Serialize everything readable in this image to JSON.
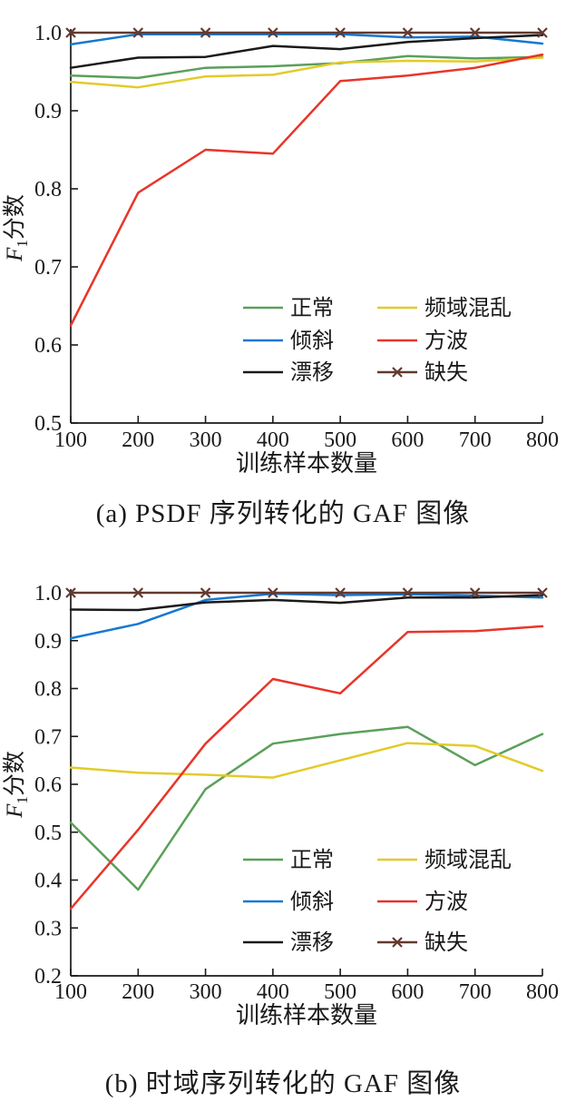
{
  "colors": {
    "axis": "#1a1a1a",
    "normal_green": "#5aa05a",
    "tilt_blue": "#1578d2",
    "drift_black": "#1a1a1a",
    "freq_yellow": "#e2cb2a",
    "square_red": "#e8352a",
    "missing_brown": "#63392f"
  },
  "chart_data": [
    {
      "type": "line",
      "caption": "(a) PSDF 序列转化的 GAF 图像",
      "xlabel": "训练样本数量",
      "ylabel": {
        "italic": "F",
        "sub": "1",
        "text": "分数"
      },
      "xlim": [
        100,
        800
      ],
      "ylim": [
        0.5,
        1.0
      ],
      "xticks": [
        100,
        200,
        300,
        400,
        500,
        600,
        700,
        800
      ],
      "yticks": [
        0.5,
        0.6,
        0.7,
        0.8,
        0.9,
        1.0
      ],
      "x": [
        100,
        200,
        300,
        400,
        500,
        600,
        700,
        800
      ],
      "legend_position": "inside-lower-right",
      "grid": false,
      "series": [
        {
          "name": "正常",
          "color": "#5aa05a",
          "marker": "none",
          "values": [
            0.945,
            0.942,
            0.955,
            0.957,
            0.961,
            0.97,
            0.967,
            0.969
          ]
        },
        {
          "name": "倾斜",
          "color": "#1578d2",
          "marker": "none",
          "values": [
            0.985,
            0.998,
            0.998,
            0.998,
            0.998,
            0.994,
            0.995,
            0.986
          ]
        },
        {
          "name": "漂移",
          "color": "#1a1a1a",
          "marker": "none",
          "values": [
            0.955,
            0.968,
            0.969,
            0.983,
            0.979,
            0.988,
            0.993,
            0.997
          ]
        },
        {
          "name": "频域混乱",
          "color": "#e2cb2a",
          "marker": "none",
          "values": [
            0.937,
            0.93,
            0.944,
            0.946,
            0.962,
            0.964,
            0.963,
            0.968
          ]
        },
        {
          "name": "方波",
          "color": "#e8352a",
          "marker": "none",
          "values": [
            0.625,
            0.795,
            0.85,
            0.845,
            0.938,
            0.945,
            0.955,
            0.972
          ]
        },
        {
          "name": "缺失",
          "color": "#63392f",
          "marker": "x",
          "values": [
            1.0,
            1.0,
            1.0,
            1.0,
            1.0,
            1.0,
            1.0,
            1.0
          ]
        }
      ]
    },
    {
      "type": "line",
      "caption": "(b) 时域序列转化的 GAF 图像",
      "xlabel": "训练样本数量",
      "ylabel": {
        "italic": "F",
        "sub": "1",
        "text": "分数"
      },
      "xlim": [
        100,
        800
      ],
      "ylim": [
        0.2,
        1.0
      ],
      "xticks": [
        100,
        200,
        300,
        400,
        500,
        600,
        700,
        800
      ],
      "yticks": [
        0.2,
        0.3,
        0.4,
        0.5,
        0.6,
        0.7,
        0.8,
        0.9,
        1.0
      ],
      "x": [
        100,
        200,
        300,
        400,
        500,
        600,
        700,
        800
      ],
      "legend_position": "inside-lower-right",
      "grid": false,
      "series": [
        {
          "name": "正常",
          "color": "#5aa05a",
          "marker": "none",
          "values": [
            0.52,
            0.38,
            0.59,
            0.685,
            0.705,
            0.72,
            0.64,
            0.705
          ]
        },
        {
          "name": "倾斜",
          "color": "#1578d2",
          "marker": "none",
          "values": [
            0.905,
            0.935,
            0.985,
            0.998,
            0.995,
            0.997,
            0.994,
            0.99
          ]
        },
        {
          "name": "漂移",
          "color": "#1a1a1a",
          "marker": "none",
          "values": [
            0.965,
            0.964,
            0.98,
            0.985,
            0.979,
            0.99,
            0.99,
            0.995
          ]
        },
        {
          "name": "频域混乱",
          "color": "#e2cb2a",
          "marker": "none",
          "values": [
            0.635,
            0.624,
            0.62,
            0.614,
            0.65,
            0.686,
            0.68,
            0.628
          ]
        },
        {
          "name": "方波",
          "color": "#e8352a",
          "marker": "none",
          "values": [
            0.34,
            0.505,
            0.685,
            0.82,
            0.79,
            0.918,
            0.92,
            0.93
          ]
        },
        {
          "name": "缺失",
          "color": "#63392f",
          "marker": "x",
          "values": [
            1.0,
            1.0,
            1.0,
            1.0,
            1.0,
            1.0,
            1.0,
            1.0
          ]
        }
      ]
    }
  ]
}
